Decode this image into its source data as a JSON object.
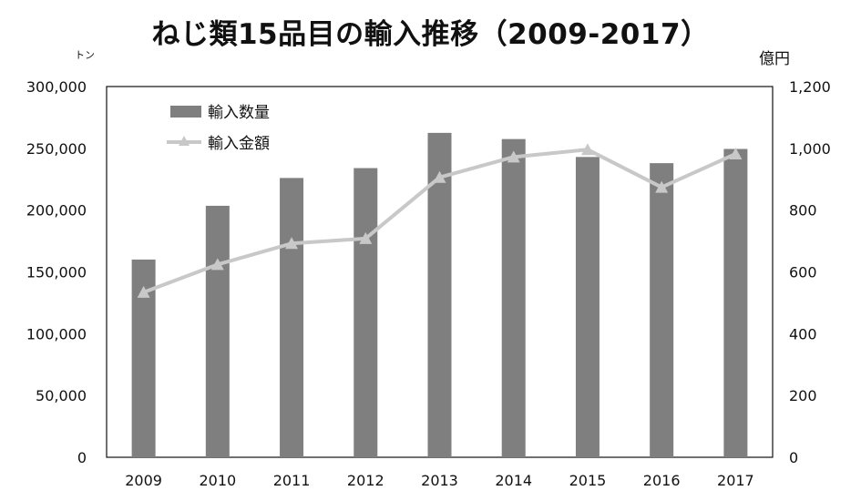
{
  "chart_data": {
    "type": "bar+line",
    "title": "ねじ類15品目の輸入推移（2009-2017）",
    "categories": [
      "2009",
      "2010",
      "2011",
      "2012",
      "2013",
      "2014",
      "2015",
      "2016",
      "2017"
    ],
    "series": [
      {
        "name": "輸入数量",
        "type": "bar",
        "axis": "left",
        "color": "#7f7f7f",
        "values": [
          160000,
          203500,
          226000,
          234000,
          262500,
          257500,
          243000,
          238000,
          249500
        ]
      },
      {
        "name": "輸入金額",
        "type": "line",
        "axis": "right",
        "color": "#c8c8c8",
        "marker": "triangle",
        "values": [
          534,
          624,
          692,
          708,
          906,
          972,
          996,
          874,
          982
        ]
      }
    ],
    "y_left": {
      "unit": "トン",
      "ylim": [
        0,
        300000
      ],
      "ticks": [
        "0",
        "50,000",
        "100,000",
        "150,000",
        "200,000",
        "250,000",
        "300,000"
      ]
    },
    "y_right": {
      "unit": "億円",
      "ylim": [
        0,
        1200
      ],
      "ticks": [
        "0",
        "200",
        "400",
        "600",
        "800",
        "1,000",
        "1,200"
      ]
    },
    "grid": false,
    "legend_position": "top-left"
  }
}
